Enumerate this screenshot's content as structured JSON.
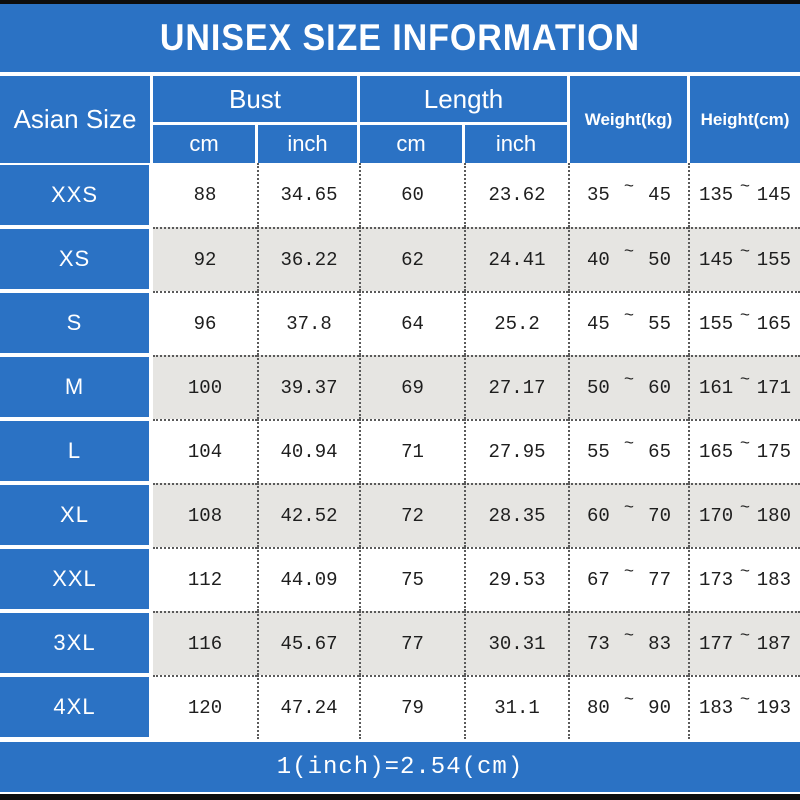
{
  "title": "UNISEX SIZE INFORMATION",
  "footer": {
    "note": "1(inch)=2.54(cm)"
  },
  "colors": {
    "accent": "#2b72c4",
    "row_alt": "#e6e5e2",
    "bar": "#0d0d0d"
  },
  "table": {
    "size_column_header": "Asian Size",
    "tilde": "~",
    "groups": [
      {
        "label": "Bust",
        "sub": [
          "cm",
          "inch"
        ]
      },
      {
        "label": "Length",
        "sub": [
          "cm",
          "inch"
        ]
      }
    ],
    "single_headers": [
      "Weight(kg)",
      "Height(cm)"
    ],
    "rows": [
      {
        "size": "XXS",
        "bust_cm": "88",
        "bust_inch": "34.65",
        "length_cm": "60",
        "length_inch": "23.62",
        "weight_min": "35",
        "weight_max": "45",
        "height_min": "135",
        "height_max": "145"
      },
      {
        "size": "XS",
        "bust_cm": "92",
        "bust_inch": "36.22",
        "length_cm": "62",
        "length_inch": "24.41",
        "weight_min": "40",
        "weight_max": "50",
        "height_min": "145",
        "height_max": "155"
      },
      {
        "size": "S",
        "bust_cm": "96",
        "bust_inch": "37.8",
        "length_cm": "64",
        "length_inch": "25.2",
        "weight_min": "45",
        "weight_max": "55",
        "height_min": "155",
        "height_max": "165"
      },
      {
        "size": "M",
        "bust_cm": "100",
        "bust_inch": "39.37",
        "length_cm": "69",
        "length_inch": "27.17",
        "weight_min": "50",
        "weight_max": "60",
        "height_min": "161",
        "height_max": "171"
      },
      {
        "size": "L",
        "bust_cm": "104",
        "bust_inch": "40.94",
        "length_cm": "71",
        "length_inch": "27.95",
        "weight_min": "55",
        "weight_max": "65",
        "height_min": "165",
        "height_max": "175"
      },
      {
        "size": "XL",
        "bust_cm": "108",
        "bust_inch": "42.52",
        "length_cm": "72",
        "length_inch": "28.35",
        "weight_min": "60",
        "weight_max": "70",
        "height_min": "170",
        "height_max": "180"
      },
      {
        "size": "XXL",
        "bust_cm": "112",
        "bust_inch": "44.09",
        "length_cm": "75",
        "length_inch": "29.53",
        "weight_min": "67",
        "weight_max": "77",
        "height_min": "173",
        "height_max": "183"
      },
      {
        "size": "3XL",
        "bust_cm": "116",
        "bust_inch": "45.67",
        "length_cm": "77",
        "length_inch": "30.31",
        "weight_min": "73",
        "weight_max": "83",
        "height_min": "177",
        "height_max": "187"
      },
      {
        "size": "4XL",
        "bust_cm": "120",
        "bust_inch": "47.24",
        "length_cm": "79",
        "length_inch": "31.1",
        "weight_min": "80",
        "weight_max": "90",
        "height_min": "183",
        "height_max": "193"
      }
    ]
  },
  "chart_data": {
    "type": "table",
    "title": "UNISEX SIZE INFORMATION",
    "columns": [
      "Asian Size",
      "Bust cm",
      "Bust inch",
      "Length cm",
      "Length inch",
      "Weight(kg)",
      "Height(cm)"
    ],
    "rows": [
      [
        "XXS",
        88,
        34.65,
        60,
        23.62,
        "35~45",
        "135~145"
      ],
      [
        "XS",
        92,
        36.22,
        62,
        24.41,
        "40~50",
        "145~155"
      ],
      [
        "S",
        96,
        37.8,
        64,
        25.2,
        "45~55",
        "155~165"
      ],
      [
        "M",
        100,
        39.37,
        69,
        27.17,
        "50~60",
        "161~171"
      ],
      [
        "L",
        104,
        40.94,
        71,
        27.95,
        "55~65",
        "165~175"
      ],
      [
        "XL",
        108,
        42.52,
        72,
        28.35,
        "60~70",
        "170~180"
      ],
      [
        "XXL",
        112,
        44.09,
        75,
        29.53,
        "67~77",
        "173~183"
      ],
      [
        "3XL",
        116,
        45.67,
        77,
        30.31,
        "73~83",
        "177~187"
      ],
      [
        "4XL",
        120,
        47.24,
        79,
        31.1,
        "80~90",
        "183~193"
      ]
    ],
    "note": "1(inch)=2.54(cm)"
  }
}
